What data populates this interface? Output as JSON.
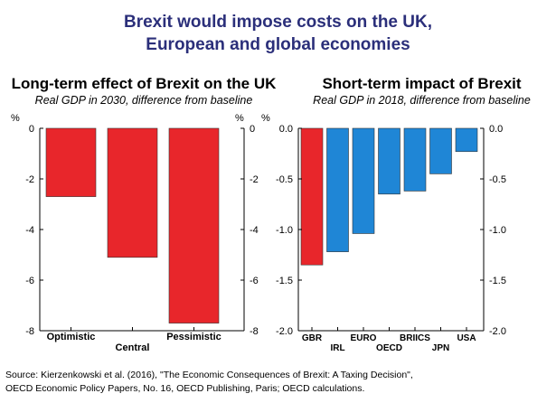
{
  "header": {
    "title_line_1": "Brexit would impose costs on the UK,",
    "title_line_2": "European and global economies"
  },
  "chart_data": [
    {
      "type": "bar",
      "title": "Long-term effect of Brexit on the UK",
      "subtitle": "Real GDP in 2030, difference from baseline",
      "categories": [
        "Optimistic",
        "Central",
        "Pessimistic"
      ],
      "values": [
        -2.7,
        -5.1,
        -7.7
      ],
      "ylabel": "%",
      "ylim": [
        -8,
        0
      ],
      "yticks": [
        0,
        -2,
        -4,
        -6,
        -8
      ],
      "ytick_labels": [
        "0",
        "-2",
        "-4",
        "-6",
        "-8"
      ],
      "colors": [
        "#e8262b",
        "#e8262b",
        "#e8262b"
      ],
      "grid": false
    },
    {
      "type": "bar",
      "title": "Short-term impact of Brexit",
      "subtitle": "Real GDP in 2018, difference from baseline",
      "categories": [
        "GBR",
        "IRL",
        "EURO",
        "OECD",
        "BRIICS",
        "JPN",
        "USA"
      ],
      "values": [
        -1.35,
        -1.22,
        -1.04,
        -0.65,
        -0.62,
        -0.45,
        -0.23
      ],
      "ylabel": "%",
      "ylim": [
        -2.0,
        0.0
      ],
      "yticks": [
        0.0,
        -0.5,
        -1.0,
        -1.5,
        -2.0
      ],
      "ytick_labels": [
        "0.0",
        "-0.5",
        "-1.0",
        "-1.5",
        "-2.0"
      ],
      "colors": [
        "#e8262b",
        "#1f86d6",
        "#1f86d6",
        "#1f86d6",
        "#1f86d6",
        "#1f86d6",
        "#1f86d6"
      ],
      "grid": false
    }
  ],
  "source": {
    "line_1": "Source: Kierzenkowski et al. (2016), \"The Economic Consequences of Brexit: A Taxing Decision\",",
    "line_2": "OECD Economic Policy Papers, No. 16, OECD Publishing, Paris; OECD calculations."
  }
}
